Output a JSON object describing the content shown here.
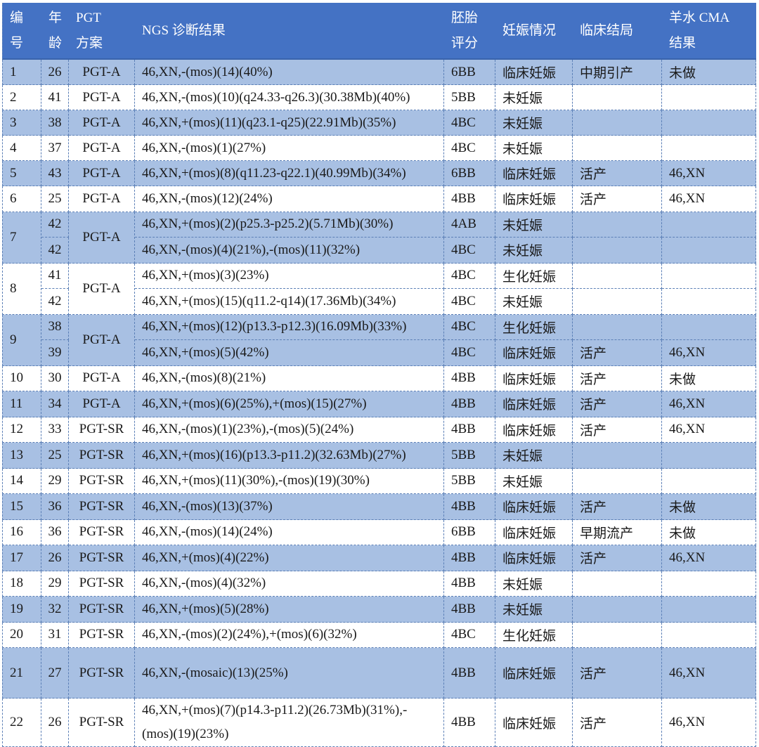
{
  "header": {
    "col_no": [
      "编",
      "号"
    ],
    "col_age": [
      "年",
      "龄"
    ],
    "col_pgt": [
      "PGT",
      "方案"
    ],
    "col_ngs": "NGS 诊断结果",
    "col_score": [
      "胚胎",
      "评分"
    ],
    "col_preg": "妊娠情况",
    "col_outcome": "临床结局",
    "col_cma": [
      "羊水 CMA",
      "结果"
    ]
  },
  "rows": [
    {
      "no": "1",
      "scheme": "PGT-A",
      "shaded": true,
      "embryos": [
        {
          "age": "26",
          "ngs": "46,XN,-(mos)(14)(40%)",
          "score": "6BB",
          "preg": "临床妊娠",
          "outcome": "中期引产",
          "cma": "未做"
        }
      ]
    },
    {
      "no": "2",
      "scheme": "PGT-A",
      "shaded": false,
      "embryos": [
        {
          "age": "41",
          "ngs": "46,XN,-(mos)(10)(q24.33-q26.3)(30.38Mb)(40%)",
          "score": "5BB",
          "preg": "未妊娠",
          "outcome": "",
          "cma": ""
        }
      ]
    },
    {
      "no": "3",
      "scheme": "PGT-A",
      "shaded": true,
      "embryos": [
        {
          "age": "38",
          "ngs": "46,XN,+(mos)(11)(q23.1-q25)(22.91Mb)(35%)",
          "score": "4BC",
          "preg": "未妊娠",
          "outcome": "",
          "cma": ""
        }
      ]
    },
    {
      "no": "4",
      "scheme": "PGT-A",
      "shaded": false,
      "embryos": [
        {
          "age": "37",
          "ngs": "46,XN,-(mos)(1)(27%)",
          "score": "4BC",
          "preg": "未妊娠",
          "outcome": "",
          "cma": ""
        }
      ]
    },
    {
      "no": "5",
      "scheme": "PGT-A",
      "shaded": true,
      "embryos": [
        {
          "age": "43",
          "ngs": "46,XN,+(mos)(8)(q11.23-q22.1)(40.99Mb)(34%)",
          "score": "6BB",
          "preg": "临床妊娠",
          "outcome": "活产",
          "cma": "46,XN"
        }
      ]
    },
    {
      "no": "6",
      "scheme": "PGT-A",
      "shaded": false,
      "embryos": [
        {
          "age": "25",
          "ngs": "46,XN,-(mos)(12)(24%)",
          "score": "4BB",
          "preg": "临床妊娠",
          "outcome": "活产",
          "cma": "46,XN"
        }
      ]
    },
    {
      "no": "7",
      "scheme": "PGT-A",
      "shaded": true,
      "embryos": [
        {
          "age": "42",
          "ngs": "46,XN,+(mos)(2)(p25.3-p25.2)(5.71Mb)(30%)",
          "score": "4AB",
          "preg": "未妊娠",
          "outcome": "",
          "cma": ""
        },
        {
          "age": "42",
          "ngs": "46,XN,-(mos)(4)(21%),-(mos)(11)(32%)",
          "score": "4BC",
          "preg": "未妊娠",
          "outcome": "",
          "cma": ""
        }
      ]
    },
    {
      "no": "8",
      "scheme": "PGT-A",
      "shaded": false,
      "embryos": [
        {
          "age": "41",
          "ngs": "46,XN,+(mos)(3)(23%)",
          "score": "4BC",
          "preg": "生化妊娠",
          "outcome": "",
          "cma": ""
        },
        {
          "age": "42",
          "ngs": "46,XN,+(mos)(15)(q11.2-q14)(17.36Mb)(34%)",
          "score": "4BC",
          "preg": "未妊娠",
          "outcome": "",
          "cma": ""
        }
      ]
    },
    {
      "no": "9",
      "scheme": "PGT-A",
      "shaded": true,
      "embryos": [
        {
          "age": "38",
          "ngs": "46,XN,+(mos)(12)(p13.3-p12.3)(16.09Mb)(33%)",
          "score": "4BC",
          "preg": "生化妊娠",
          "outcome": "",
          "cma": ""
        },
        {
          "age": "39",
          "ngs": "46,XN,+(mos)(5)(42%)",
          "score": "4BC",
          "preg": "临床妊娠",
          "outcome": "活产",
          "cma": "46,XN"
        }
      ]
    },
    {
      "no": "10",
      "scheme": "PGT-A",
      "shaded": false,
      "embryos": [
        {
          "age": "30",
          "ngs": "46,XN,-(mos)(8)(21%)",
          "score": "4BB",
          "preg": "临床妊娠",
          "outcome": "活产",
          "cma": "未做"
        }
      ]
    },
    {
      "no": "11",
      "scheme": "PGT-A",
      "shaded": true,
      "embryos": [
        {
          "age": "34",
          "ngs": "46,XN,+(mos)(6)(25%),+(mos)(15)(27%)",
          "score": "4BB",
          "preg": "临床妊娠",
          "outcome": "活产",
          "cma": "46,XN"
        }
      ]
    },
    {
      "no": "12",
      "scheme": "PGT-SR",
      "shaded": false,
      "embryos": [
        {
          "age": "33",
          "ngs": "46,XN,-(mos)(1)(23%),-(mos)(5)(24%)",
          "score": "4BB",
          "preg": "临床妊娠",
          "outcome": "活产",
          "cma": "46,XN"
        }
      ]
    },
    {
      "no": "13",
      "scheme": "PGT-SR",
      "shaded": true,
      "embryos": [
        {
          "age": "25",
          "ngs": "46,XN,+(mos)(16)(p13.3-p11.2)(32.63Mb)(27%)",
          "score": "5BB",
          "preg": "未妊娠",
          "outcome": "",
          "cma": ""
        }
      ]
    },
    {
      "no": "14",
      "scheme": "PGT-SR",
      "shaded": false,
      "embryos": [
        {
          "age": "29",
          "ngs": "46,XN,+(mos)(11)(30%),-(mos)(19)(30%)",
          "score": "5BB",
          "preg": "未妊娠",
          "outcome": "",
          "cma": ""
        }
      ]
    },
    {
      "no": "15",
      "scheme": "PGT-SR",
      "shaded": true,
      "embryos": [
        {
          "age": "36",
          "ngs": "46,XN,-(mos)(13)(37%)",
          "score": "4BB",
          "preg": "临床妊娠",
          "outcome": "活产",
          "cma": "未做"
        }
      ]
    },
    {
      "no": "16",
      "scheme": "PGT-SR",
      "shaded": false,
      "embryos": [
        {
          "age": "36",
          "ngs": "46,XN,-(mos)(14)(24%)",
          "score": "6BB",
          "preg": "临床妊娠",
          "outcome": "早期流产",
          "cma": "未做"
        }
      ]
    },
    {
      "no": "17",
      "scheme": "PGT-SR",
      "shaded": true,
      "embryos": [
        {
          "age": "26",
          "ngs": "46,XN,+(mos)(4)(22%)",
          "score": "4BB",
          "preg": "临床妊娠",
          "outcome": "活产",
          "cma": "46,XN"
        }
      ]
    },
    {
      "no": "18",
      "scheme": "PGT-SR",
      "shaded": false,
      "embryos": [
        {
          "age": "29",
          "ngs": "46,XN,-(mos)(4)(32%)",
          "score": "4BB",
          "preg": "未妊娠",
          "outcome": "",
          "cma": ""
        }
      ]
    },
    {
      "no": "19",
      "scheme": "PGT-SR",
      "shaded": true,
      "embryos": [
        {
          "age": "32",
          "ngs": "46,XN,+(mos)(5)(28%)",
          "score": "4BB",
          "preg": "未妊娠",
          "outcome": "",
          "cma": ""
        }
      ]
    },
    {
      "no": "20",
      "scheme": "PGT-SR",
      "shaded": false,
      "embryos": [
        {
          "age": "31",
          "ngs": "46,XN,-(mos)(2)(24%),+(mos)(6)(32%)",
          "score": "4BC",
          "preg": "生化妊娠",
          "outcome": "",
          "cma": ""
        }
      ]
    },
    {
      "no": "21",
      "scheme": "PGT-SR",
      "shaded": true,
      "embryos": [
        {
          "age": "27",
          "ngs": "46,XN,-(mosaic)(13)(25%)",
          "score": "4BB",
          "preg": "临床妊娠",
          "outcome": "活产",
          "cma": "46,XN"
        }
      ]
    },
    {
      "no": "22",
      "scheme": "PGT-SR",
      "shaded": false,
      "embryos": [
        {
          "age": "26",
          "ngs": "46,XN,+(mos)(7)(p14.3-p11.2)(26.73Mb)(31%),-(mos)(19)(23%)",
          "score": "4BB",
          "preg": "临床妊娠",
          "outcome": "活产",
          "cma": "46,XN"
        }
      ]
    }
  ]
}
